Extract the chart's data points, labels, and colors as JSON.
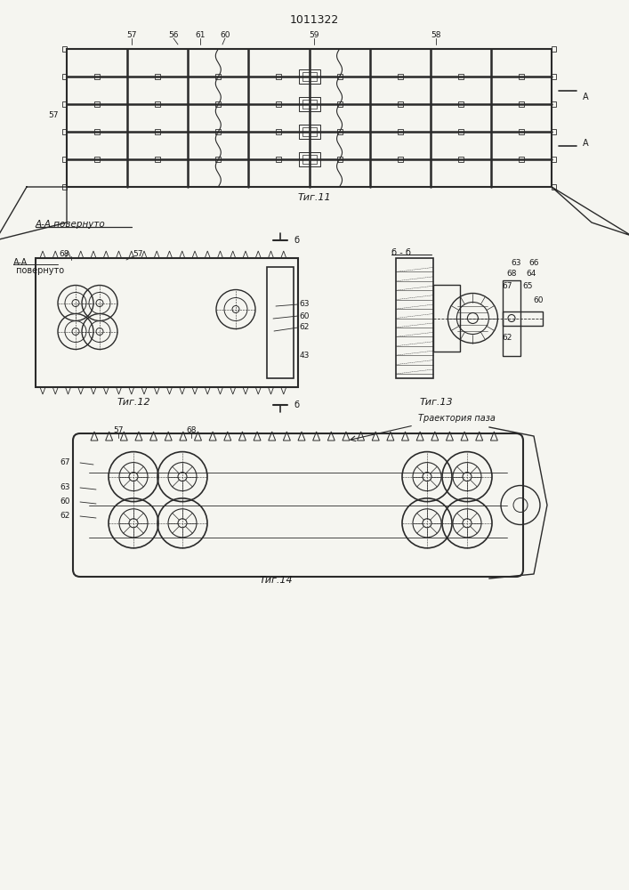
{
  "title": "1011322",
  "bg_color": "#f5f5f0",
  "line_color": "#2a2a2a",
  "fig_width": 7.07,
  "fig_height": 10.0,
  "fig11_caption": "Τиг.11",
  "fig12_caption": "Τиг.12",
  "fig13_caption": "Τиг.13",
  "fig14_caption": "Τиг.14",
  "aa_label": "A-A повернуто",
  "bb_label": "б - б",
  "traj_label": "Траектория паза"
}
